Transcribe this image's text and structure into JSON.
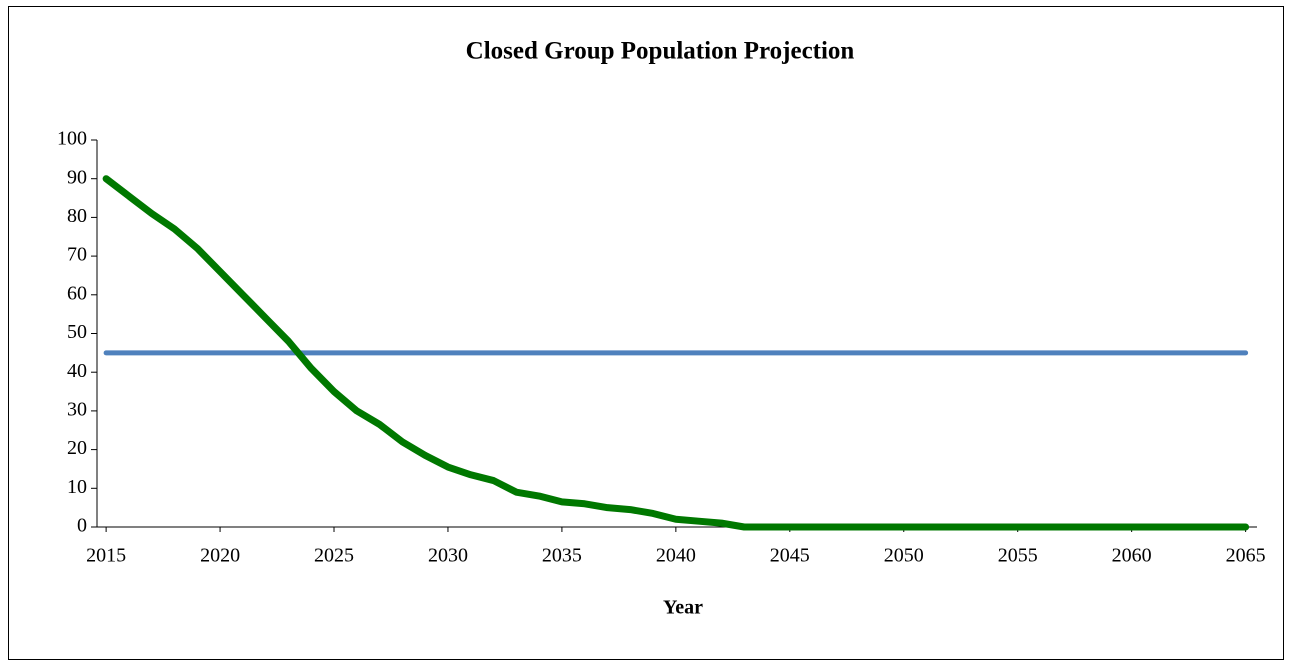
{
  "chart_data": {
    "type": "line",
    "title": "Closed Group Population Projection",
    "x_label": "Year",
    "x": [
      2015,
      2016,
      2017,
      2018,
      2019,
      2020,
      2021,
      2022,
      2023,
      2024,
      2025,
      2026,
      2027,
      2028,
      2029,
      2030,
      2031,
      2032,
      2033,
      2034,
      2035,
      2036,
      2037,
      2038,
      2039,
      2040,
      2041,
      2042,
      2043,
      2044,
      2045,
      2046,
      2047,
      2048,
      2049,
      2050,
      2051,
      2052,
      2053,
      2054,
      2055,
      2056,
      2057,
      2058,
      2059,
      2060,
      2061,
      2062,
      2063,
      2064,
      2065
    ],
    "series": [
      {
        "color": "#007800",
        "values": [
          90,
          85.5,
          81,
          77,
          72,
          66,
          60,
          54,
          48,
          41,
          35,
          30,
          26.5,
          22,
          18.5,
          15.5,
          13.5,
          12,
          9,
          8,
          6.5,
          6,
          5,
          4.5,
          3.5,
          2,
          1.5,
          1,
          0,
          0,
          0,
          0,
          0,
          0,
          0,
          0,
          0,
          0,
          0,
          0,
          0,
          0,
          0,
          0,
          0,
          0,
          0,
          0,
          0,
          0,
          0
        ]
      },
      {
        "color": "#4f81bd",
        "values": [
          45,
          45,
          45,
          45,
          45,
          45,
          45,
          45,
          45,
          45,
          45,
          45,
          45,
          45,
          45,
          45,
          45,
          45,
          45,
          45,
          45,
          45,
          45,
          45,
          45,
          45,
          45,
          45,
          45,
          45,
          45,
          45,
          45,
          45,
          45,
          45,
          45,
          45,
          45,
          45,
          45,
          45,
          45,
          45,
          45,
          45,
          45,
          45,
          45,
          45,
          45
        ]
      }
    ],
    "xlim": [
      2014.6,
      2065.5
    ],
    "xticks": [
      2015,
      2020,
      2025,
      2030,
      2035,
      2040,
      2045,
      2050,
      2055,
      2060,
      2065
    ],
    "ylim": [
      0,
      100
    ],
    "yticks": [
      0,
      10,
      20,
      30,
      40,
      50,
      60,
      70,
      80,
      90,
      100
    ]
  }
}
